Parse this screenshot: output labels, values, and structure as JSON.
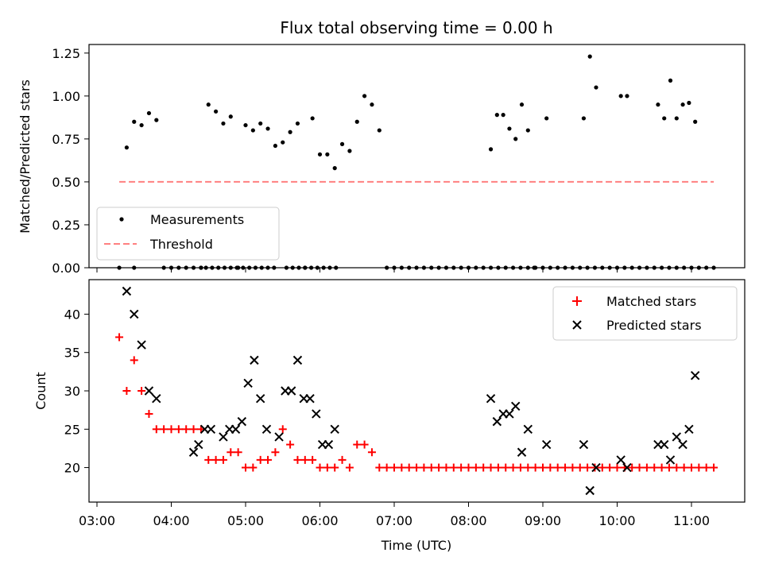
{
  "chart_data": [
    {
      "type": "scatter",
      "title": "Flux total observing time = 0.00 h",
      "xlabel": "",
      "ylabel": "Matched/Predicted stars",
      "ylim": [
        0,
        1.3
      ],
      "yticks": [
        "0.00",
        "0.25",
        "0.50",
        "0.75",
        "1.00",
        "1.25"
      ],
      "legend_position": "lower-left",
      "series": [
        {
          "name": "Measurements",
          "color": "#000000",
          "x": [
            "03:18",
            "03:24",
            "03:30",
            "03:36",
            "03:42",
            "03:48",
            "03:54",
            "04:00",
            "04:06",
            "04:12",
            "04:18",
            "04:24",
            "04:30",
            "04:36",
            "04:42",
            "04:48",
            "04:54",
            "05:00",
            "05:06",
            "05:12",
            "05:18",
            "05:24",
            "05:30",
            "05:36",
            "05:42",
            "05:48",
            "05:54",
            "06:00",
            "06:06",
            "06:12",
            "06:18",
            "06:24",
            "06:30",
            "06:36",
            "06:42",
            "06:48",
            "06:54",
            "07:00",
            "07:06",
            "07:12",
            "07:18",
            "07:24",
            "07:30",
            "07:36",
            "07:42",
            "07:48",
            "07:54",
            "08:00",
            "08:06",
            "08:12",
            "08:18",
            "08:24",
            "08:30",
            "08:36",
            "08:42",
            "08:48",
            "08:54",
            "09:00",
            "09:06",
            "09:12",
            "09:18",
            "09:24",
            "09:30",
            "09:36",
            "09:42",
            "09:48",
            "09:54",
            "10:00",
            "10:06",
            "10:12",
            "10:18",
            "10:24",
            "10:30",
            "10:36",
            "10:42",
            "10:48",
            "10:54",
            "11:00",
            "11:06",
            "11:12",
            "11:18",
            "03:30",
            "04:24",
            "04:28",
            "04:33",
            "04:38",
            "04:43",
            "04:48",
            "04:53",
            "04:58",
            "05:03",
            "05:08",
            "05:13",
            "05:18",
            "05:23",
            "05:33",
            "05:38",
            "05:43",
            "05:48",
            "05:53",
            "05:58",
            "06:03",
            "06:08",
            "06:13",
            "08:18",
            "08:23",
            "08:28",
            "08:33",
            "08:38",
            "08:43",
            "08:48",
            "08:53",
            "09:03",
            "09:33",
            "09:38",
            "09:43",
            "10:03",
            "10:08",
            "10:33",
            "10:38",
            "10:43",
            "10:48",
            "10:53",
            "10:58",
            "11:03"
          ],
          "y": [
            0.0,
            0.7,
            0.85,
            0.83,
            0.9,
            0.86,
            0.0,
            0.0,
            0.0,
            0.0,
            0.0,
            0.0,
            0.95,
            0.91,
            0.84,
            0.88,
            0.0,
            0.83,
            0.8,
            0.84,
            0.81,
            0.71,
            0.73,
            0.79,
            0.84,
            0.0,
            0.87,
            0.66,
            0.66,
            0.58,
            0.72,
            0.68,
            0.85,
            1.0,
            0.95,
            0.8,
            0.0,
            0.0,
            0.0,
            0.0,
            0.0,
            0.0,
            0.0,
            0.0,
            0.0,
            0.0,
            0.0,
            0.0,
            0.0,
            0.0,
            0.0,
            0.0,
            0.0,
            0.0,
            0.0,
            0.0,
            0.0,
            0.0,
            0.0,
            0.0,
            0.0,
            0.0,
            0.0,
            0.0,
            0.0,
            0.0,
            0.0,
            0.0,
            0.0,
            0.0,
            0.0,
            0.0,
            0.0,
            0.0,
            0.0,
            0.0,
            0.0,
            0.0,
            0.0,
            0.0,
            0.0,
            0.0,
            0.0,
            0.0,
            0.0,
            0.0,
            0.0,
            0.0,
            0.0,
            0.0,
            0.0,
            0.0,
            0.0,
            0.0,
            0.0,
            0.0,
            0.0,
            0.0,
            0.0,
            0.0,
            0.0,
            0.0,
            0.0,
            0.0,
            0.69,
            0.89,
            0.89,
            0.81,
            0.75,
            0.95,
            0.8,
            0.0,
            0.87,
            0.87,
            1.23,
            1.05,
            1.0,
            1.0,
            0.95,
            0.87,
            1.09,
            0.87,
            0.95,
            0.96,
            0.85
          ]
        },
        {
          "name": "Threshold",
          "color": "#ff8080",
          "style": "dashed",
          "x": [
            "03:18",
            "11:18"
          ],
          "y": [
            0.5,
            0.5
          ]
        }
      ]
    },
    {
      "type": "scatter",
      "title": "",
      "xlabel": "Time (UTC)",
      "ylabel": "Count",
      "ylim": [
        15.5,
        44.5
      ],
      "yticks": [
        "20",
        "25",
        "30",
        "35",
        "40"
      ],
      "xticks": [
        "03:00",
        "04:00",
        "05:00",
        "06:00",
        "07:00",
        "08:00",
        "09:00",
        "10:00",
        "11:00"
      ],
      "legend_position": "upper-right",
      "series": [
        {
          "name": "Matched stars",
          "color": "#ff0000",
          "marker": "+",
          "x": [
            "03:18",
            "03:24",
            "03:30",
            "03:36",
            "03:42",
            "03:48",
            "03:54",
            "04:00",
            "04:06",
            "04:12",
            "04:18",
            "04:24",
            "04:30",
            "04:36",
            "04:42",
            "04:48",
            "04:54",
            "05:00",
            "05:06",
            "05:12",
            "05:18",
            "05:24",
            "05:30",
            "05:36",
            "05:42",
            "05:48",
            "05:54",
            "06:00",
            "06:06",
            "06:12",
            "06:18",
            "06:24",
            "06:30",
            "06:36",
            "06:42",
            "06:48",
            "06:54",
            "07:00",
            "07:06",
            "07:12",
            "07:18",
            "07:24",
            "07:30",
            "07:36",
            "07:42",
            "07:48",
            "07:54",
            "08:00",
            "08:06",
            "08:12",
            "08:18",
            "08:24",
            "08:30",
            "08:36",
            "08:42",
            "08:48",
            "08:54",
            "09:00",
            "09:06",
            "09:12",
            "09:18",
            "09:24",
            "09:30",
            "09:36",
            "09:42",
            "09:48",
            "09:54",
            "10:00",
            "10:06",
            "10:12",
            "10:18",
            "10:24",
            "10:30",
            "10:36",
            "10:42",
            "10:48",
            "10:54",
            "11:00",
            "11:06",
            "11:12",
            "11:18"
          ],
          "y": [
            37,
            30,
            34,
            30,
            27,
            25,
            25,
            25,
            25,
            25,
            25,
            25,
            21,
            21,
            21,
            22,
            22,
            20,
            20,
            21,
            21,
            22,
            25,
            23,
            21,
            21,
            21,
            20,
            20,
            20,
            21,
            20,
            23,
            23,
            22,
            20,
            20,
            20,
            20,
            20,
            20,
            20,
            20,
            20,
            20,
            20,
            20,
            20,
            20,
            20,
            20,
            20,
            20,
            20,
            20,
            20,
            20,
            20,
            20,
            20,
            20,
            20,
            20,
            20,
            20,
            20,
            20,
            20,
            20,
            20,
            20,
            20,
            20,
            20,
            20,
            20,
            20,
            20,
            20,
            20,
            20
          ]
        },
        {
          "name": "Predicted stars",
          "color": "#000000",
          "marker": "x",
          "x": [
            "03:24",
            "03:30",
            "03:36",
            "03:42",
            "03:48",
            "04:18",
            "04:22",
            "04:27",
            "04:32",
            "04:42",
            "04:47",
            "04:52",
            "04:57",
            "05:02",
            "05:07",
            "05:12",
            "05:17",
            "05:27",
            "05:32",
            "05:37",
            "05:42",
            "05:47",
            "05:52",
            "05:57",
            "06:02",
            "06:07",
            "06:12",
            "08:18",
            "08:23",
            "08:28",
            "08:33",
            "08:38",
            "08:43",
            "08:48",
            "09:03",
            "09:33",
            "09:38",
            "09:43",
            "10:03",
            "10:08",
            "10:33",
            "10:38",
            "10:43",
            "10:48",
            "10:53",
            "10:58",
            "11:03"
          ],
          "y": [
            43,
            40,
            36,
            30,
            29,
            22,
            23,
            25,
            25,
            24,
            25,
            25,
            26,
            31,
            34,
            29,
            25,
            24,
            30,
            30,
            34,
            29,
            29,
            27,
            23,
            23,
            25,
            29,
            26,
            27,
            27,
            28,
            22,
            25,
            23,
            23,
            17,
            20,
            21,
            20,
            23,
            23,
            21,
            24,
            23,
            25,
            32
          ]
        }
      ]
    }
  ]
}
